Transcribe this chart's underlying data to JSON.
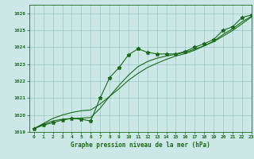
{
  "hours": [
    0,
    1,
    2,
    3,
    4,
    5,
    6,
    7,
    8,
    9,
    10,
    11,
    12,
    13,
    14,
    15,
    16,
    17,
    18,
    19,
    20,
    21,
    22,
    23
  ],
  "pressure_main": [
    1019.2,
    1019.4,
    1019.55,
    1019.7,
    1019.8,
    1019.75,
    1019.65,
    1021.0,
    1022.2,
    1022.8,
    1023.55,
    1023.9,
    1023.7,
    1023.6,
    1023.6,
    1023.6,
    1023.75,
    1024.0,
    1024.2,
    1024.45,
    1025.0,
    1025.2,
    1025.75,
    1025.9
  ],
  "pressure_smooth": [
    1019.2,
    1019.45,
    1019.65,
    1019.75,
    1019.8,
    1019.82,
    1019.85,
    1020.4,
    1021.1,
    1021.75,
    1022.35,
    1022.85,
    1023.15,
    1023.35,
    1023.48,
    1023.58,
    1023.7,
    1023.88,
    1024.08,
    1024.35,
    1024.75,
    1025.08,
    1025.5,
    1025.82
  ],
  "pressure_trend": [
    1019.2,
    1019.5,
    1019.8,
    1020.0,
    1020.15,
    1020.25,
    1020.3,
    1020.65,
    1021.1,
    1021.55,
    1022.05,
    1022.45,
    1022.8,
    1023.05,
    1023.28,
    1023.48,
    1023.62,
    1023.82,
    1024.08,
    1024.32,
    1024.65,
    1024.98,
    1025.38,
    1025.78
  ],
  "ylim": [
    1019.0,
    1026.5
  ],
  "xlim": [
    -0.5,
    23
  ],
  "yticks": [
    1019,
    1020,
    1021,
    1022,
    1023,
    1024,
    1025,
    1026
  ],
  "xticks": [
    0,
    1,
    2,
    3,
    4,
    5,
    6,
    7,
    8,
    9,
    10,
    11,
    12,
    13,
    14,
    15,
    16,
    17,
    18,
    19,
    20,
    21,
    22,
    23
  ],
  "xlabel": "Graphe pression niveau de la mer (hPa)",
  "line_color": "#1a6b1a",
  "bg_color": "#cce8e6",
  "grid_color": "#9dc8c5",
  "marker": "*",
  "marker_size": 3.5,
  "linewidth": 0.8
}
